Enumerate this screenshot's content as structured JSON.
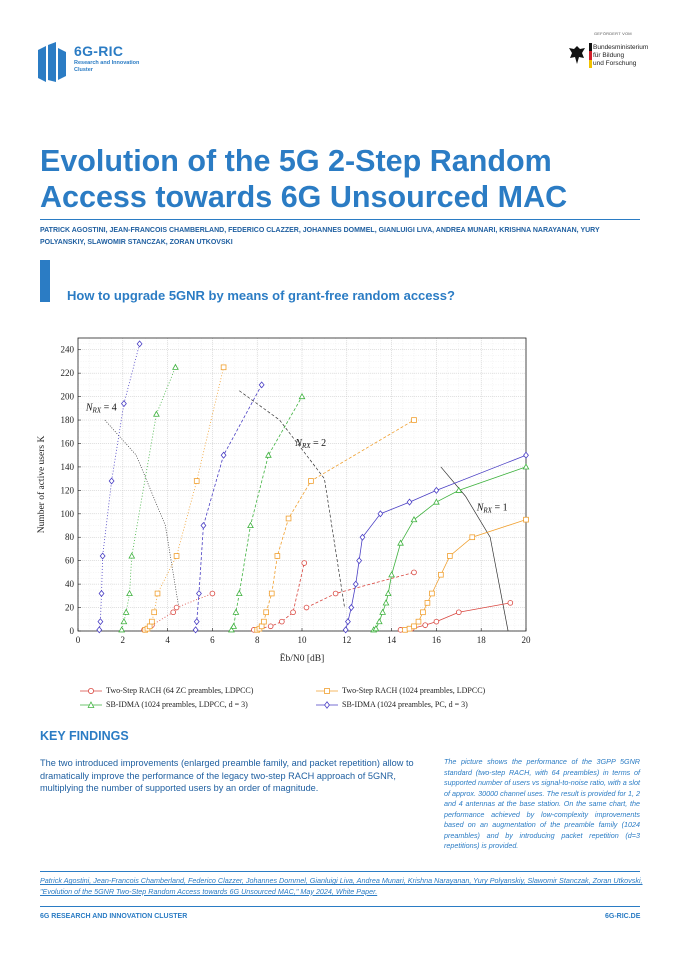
{
  "header": {
    "logo_name": "6G-RIC",
    "logo_sub": "Research and Innovation Cluster",
    "sponsor_small": "GEFÖRDERT VOM",
    "sponsor_lines": [
      "Bundesministerium",
      "für Bildung",
      "und Forschung"
    ]
  },
  "title": "Evolution of the 5G 2-Step Random Access towards 6G Unsourced MAC",
  "authors": "PATRICK AGOSTINI, JEAN-FRANCOIS CHAMBERLAND, FEDERICO CLAZZER, JOHANNES DOMMEL, GIANLUIGI LIVA, ANDREA MUNARI, KRISHNA NARAYANAN, YURY POLYANSKIY, SLAWOMIR STANCZAK, ZORAN UTKOVSKI",
  "subtitle": "How to upgrade 5GNR by means of grant-free random access?",
  "chart_data": {
    "type": "line",
    "xlabel": "Ēb/N0 [dB]",
    "ylabel": "Number of active users K",
    "xlim": [
      0,
      20
    ],
    "ylim": [
      0,
      250
    ],
    "xticks": [
      "0",
      "2",
      "4",
      "6",
      "8",
      "10",
      "12",
      "14",
      "16",
      "18",
      "20"
    ],
    "yticks": [
      "0",
      "20",
      "40",
      "60",
      "80",
      "100",
      "120",
      "140",
      "160",
      "180",
      "200",
      "220",
      "240"
    ],
    "annotations": [
      {
        "text": "N_RX = 4",
        "x": 0.35,
        "y": 188
      },
      {
        "text": "N_RX = 2",
        "x": 9.7,
        "y": 158
      },
      {
        "text": "N_RX = 1",
        "x": 17.8,
        "y": 103
      }
    ],
    "series": [
      {
        "name": "Two-Step RACH (64 ZC preambles, LDPCC)",
        "color": "#d9463f",
        "marker": "circle",
        "groups": [
          {
            "rx": 4,
            "dash": "1,2",
            "x": [
              2.95,
              3.1,
              3.3,
              4.25
            ],
            "y": [
              1,
              2,
              5,
              16
            ]
          },
          {
            "rx": 2,
            "dash": "3,2",
            "x": [
              7.85,
              8.1,
              8.6,
              9.1,
              9.6,
              10.1
            ],
            "y": [
              1,
              2,
              4,
              8,
              16,
              58
            ]
          },
          {
            "rx": 1,
            "dash": "",
            "x": [
              14.4,
              14.9,
              15.5,
              16.0,
              17.0,
              19.3
            ],
            "y": [
              1,
              2,
              5,
              8,
              16,
              24
            ]
          },
          {
            "rx": 0,
            "dash": "1,2",
            "x": [
              4.4,
              6.0
            ],
            "y": [
              20,
              32
            ]
          },
          {
            "rx": 0,
            "dash": "3,2",
            "x": [
              10.2,
              11.5,
              15.0
            ],
            "y": [
              20,
              32,
              50
            ]
          }
        ]
      },
      {
        "name": "Two-Step RACH (1024 preambles, LDPCC)",
        "color": "#f0a030",
        "marker": "square",
        "groups": [
          {
            "rx": 4,
            "dash": "1,2",
            "x": [
              3.0,
              3.1,
              3.2,
              3.3,
              3.4,
              3.55,
              4.4,
              5.3,
              6.5
            ],
            "y": [
              1,
              2,
              4,
              8,
              16,
              32,
              64,
              128,
              225
            ]
          },
          {
            "rx": 2,
            "dash": "3,2",
            "x": [
              8.0,
              8.1,
              8.2,
              8.3,
              8.4,
              8.65,
              8.9,
              9.4,
              10.4,
              15.0
            ],
            "y": [
              1,
              2,
              4,
              8,
              16,
              32,
              64,
              96,
              128,
              180
            ]
          },
          {
            "rx": 1,
            "dash": "",
            "x": [
              14.6,
              14.8,
              15.0,
              15.2,
              15.4,
              15.6,
              15.8,
              16.2,
              16.6,
              17.6,
              20.0
            ],
            "y": [
              1,
              2,
              4,
              8,
              16,
              24,
              32,
              48,
              64,
              80,
              95
            ]
          }
        ]
      },
      {
        "name": "SB-IDMA (1024 preambles, LDPCC, d = 3)",
        "color": "#3fb23f",
        "marker": "triangle",
        "groups": [
          {
            "rx": 4,
            "dash": "1,2",
            "x": [
              1.95,
              2.05,
              2.15,
              2.3,
              2.4,
              3.5,
              4.35
            ],
            "y": [
              1,
              8,
              16,
              32,
              64,
              185,
              225
            ]
          },
          {
            "rx": 2,
            "dash": "3,2",
            "x": [
              6.85,
              6.95,
              7.05,
              7.2,
              7.7,
              8.5,
              10.0
            ],
            "y": [
              1,
              4,
              16,
              32,
              90,
              150,
              200
            ]
          },
          {
            "rx": 1,
            "dash": "",
            "x": [
              13.2,
              13.3,
              13.45,
              13.6,
              13.75,
              13.85,
              14.0,
              14.4,
              15.0,
              16.0,
              17.0,
              20.0
            ],
            "y": [
              1,
              2,
              8,
              16,
              24,
              32,
              48,
              75,
              95,
              110,
              120,
              140
            ]
          }
        ]
      },
      {
        "name": "SB-IDMA (1024 preambles, PC, d = 3)",
        "color": "#4a3fc4",
        "marker": "diamond",
        "groups": [
          {
            "rx": 4,
            "dash": "1,2",
            "x": [
              0.95,
              1.0,
              1.05,
              1.1,
              1.5,
              2.05,
              2.75
            ],
            "y": [
              1,
              8,
              32,
              64,
              128,
              194,
              245
            ]
          },
          {
            "rx": 2,
            "dash": "3,2",
            "x": [
              5.25,
              5.3,
              5.4,
              5.6,
              6.5,
              8.2
            ],
            "y": [
              1,
              8,
              32,
              90,
              150,
              210
            ]
          },
          {
            "rx": 1,
            "dash": "",
            "x": [
              11.95,
              12.05,
              12.2,
              12.4,
              12.55,
              12.7,
              13.5,
              14.8,
              16.0,
              20.0
            ],
            "y": [
              1,
              8,
              20,
              40,
              60,
              80,
              100,
              110,
              120,
              150
            ]
          }
        ]
      }
    ]
  },
  "key_findings": {
    "title": "KEY FINDINGS",
    "body": "The two introduced improvements (enlarged preamble family, and packet repetition) allow to dramatically improve the performance of the legacy two-step RACH approach of 5GNR, multiplying the number of supported users by an order of magnitude.",
    "side_note": "The picture shows the performance of the 3GPP 5GNR standard (two-step RACH, with 64 preambles) in terms of supported number of users vs signal-to-noise ratio, with a slot of approx. 30000 channel uses. The result is provided for 1, 2 and 4 antennas at the base station. On the same chart, the performance achieved by low-complexity improvements based on an augmentation of the preamble family (1024 preambles) and by introducing packet repetition (d=3 repetitions) is provided."
  },
  "citation": "Patrick Agostini, Jean-Francois Chamberland, Federico Clazzer, Johannes Dommel, Gianluigi Liva, Andrea Munari, Krishna Narayanan, Yury Polyanskiy, Slawomir Stanczak, Zoran Utkovski, \"Evolution of the 5GNR Two-Step Random Access towards 6G Unsourced MAC,\" May 2024, White Paper.",
  "footer": {
    "left": "6G RESEARCH AND INNOVATION CLUSTER",
    "right": "6G-RIC.DE"
  }
}
